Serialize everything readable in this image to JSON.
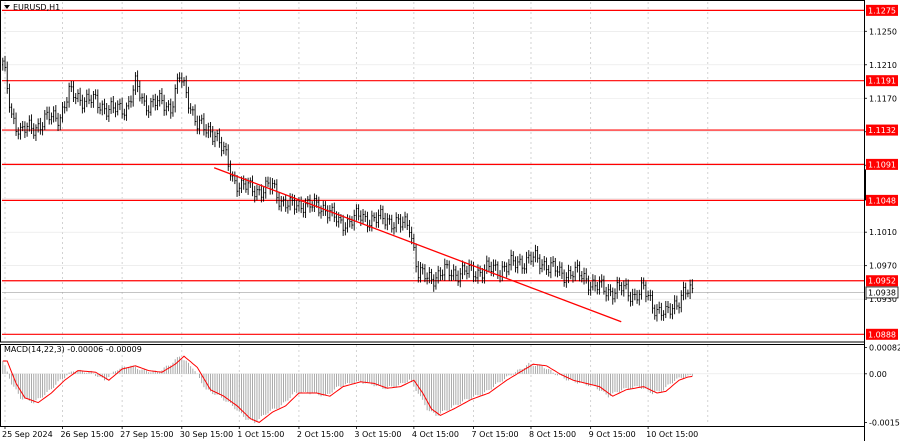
{
  "header": {
    "title": "EURUSD,H1",
    "menu_icon": "triangle-down-icon"
  },
  "colors": {
    "level": "#ff0000",
    "trend": "#ff0000",
    "candle": "#000000",
    "grid": "#c8c8c8",
    "hist": "#a0a0a0",
    "signal": "#ff0000",
    "bid": "#a0a0a0"
  },
  "price_axis": {
    "labels": [
      "1.1250",
      "1.1210",
      "1.1170",
      "1.1130",
      "1.1090",
      "1.1050",
      "1.1010",
      "1.0970",
      "1.0930"
    ]
  },
  "level_labels": [
    "1.1275",
    "1.1191",
    "1.1132",
    "1.1091",
    "1.1048",
    "1.0952",
    "1.0888"
  ],
  "current_price": "1.0938",
  "macd": {
    "title": "MACD(14,22,3) -0.00006 -0.00009",
    "axis_labels": [
      "0.00082",
      "0.00",
      "-0.00152"
    ]
  },
  "time_axis": {
    "labels": [
      "25 Sep 2024",
      "26 Sep 15:00",
      "27 Sep 15:00",
      "30 Sep 15:00",
      "1 Oct 15:00",
      "2 Oct 15:00",
      "3 Oct 15:00",
      "4 Oct 15:00",
      "7 Oct 15:00",
      "8 Oct 15:00",
      "9 Oct 15:00",
      "10 Oct 15:00"
    ]
  },
  "chart_data": {
    "type": "candlestick",
    "symbol": "EURUSD",
    "timeframe": "H1",
    "ylim": [
      1.088,
      1.1285
    ],
    "levels": [
      1.1275,
      1.1191,
      1.1132,
      1.1091,
      1.1048,
      1.0952,
      1.0888
    ],
    "current_price": 1.0938,
    "trendline": {
      "from": {
        "bar": 96,
        "price": 1.1087
      },
      "to": {
        "bar": 244,
        "price": 1.0931
      }
    },
    "price_path": [
      [
        0,
        1.121
      ],
      [
        4,
        1.115
      ],
      [
        8,
        1.113
      ],
      [
        14,
        1.1135
      ],
      [
        20,
        1.1145
      ],
      [
        26,
        1.115
      ],
      [
        30,
        1.1175
      ],
      [
        36,
        1.117
      ],
      [
        42,
        1.1165
      ],
      [
        50,
        1.1155
      ],
      [
        56,
        1.116
      ],
      [
        60,
        1.1185
      ],
      [
        64,
        1.1163
      ],
      [
        70,
        1.1165
      ],
      [
        76,
        1.116
      ],
      [
        80,
        1.1195
      ],
      [
        84,
        1.1168
      ],
      [
        88,
        1.114
      ],
      [
        92,
        1.113
      ],
      [
        96,
        1.113
      ],
      [
        100,
        1.1105
      ],
      [
        104,
        1.1075
      ],
      [
        108,
        1.1065
      ],
      [
        112,
        1.1062
      ],
      [
        118,
        1.106
      ],
      [
        122,
        1.1065
      ],
      [
        126,
        1.1048
      ],
      [
        130,
        1.104
      ],
      [
        136,
        1.1045
      ],
      [
        140,
        1.104
      ],
      [
        146,
        1.104
      ],
      [
        152,
        1.102
      ],
      [
        158,
        1.1025
      ],
      [
        162,
        1.1028
      ],
      [
        168,
        1.1025
      ],
      [
        174,
        1.1026
      ],
      [
        180,
        1.1018
      ],
      [
        184,
        1.102
      ],
      [
        188,
        1.096
      ],
      [
        192,
        1.0955
      ],
      [
        200,
        1.0962
      ],
      [
        210,
        1.0962
      ],
      [
        220,
        1.0965
      ],
      [
        228,
        1.0968
      ],
      [
        234,
        1.0975
      ],
      [
        240,
        1.0978
      ],
      [
        246,
        1.0972
      ],
      [
        252,
        1.096
      ],
      [
        258,
        1.0962
      ],
      [
        264,
        1.0955
      ],
      [
        268,
        1.0945
      ],
      [
        274,
        1.094
      ],
      [
        280,
        1.0942
      ],
      [
        286,
        1.0935
      ],
      [
        290,
        1.094
      ],
      [
        296,
        1.0918
      ],
      [
        300,
        1.091
      ],
      [
        304,
        1.0925
      ],
      [
        308,
        1.0936
      ],
      [
        312,
        1.0938
      ]
    ],
    "macd_path": [
      [
        0,
        0.0004
      ],
      [
        4,
        -0.0003
      ],
      [
        8,
        -0.00075
      ],
      [
        14,
        -0.0009
      ],
      [
        20,
        -0.0006
      ],
      [
        26,
        -0.0002
      ],
      [
        32,
        0.0001
      ],
      [
        40,
        5e-05
      ],
      [
        46,
        -0.0002
      ],
      [
        52,
        0.00015
      ],
      [
        58,
        0.00025
      ],
      [
        64,
        0.0001
      ],
      [
        70,
        5e-05
      ],
      [
        76,
        0.0003
      ],
      [
        80,
        0.00055
      ],
      [
        86,
        0.0002
      ],
      [
        92,
        -0.0005
      ],
      [
        98,
        -0.0007
      ],
      [
        104,
        -0.001
      ],
      [
        110,
        -0.0014
      ],
      [
        114,
        -0.00152
      ],
      [
        120,
        -0.0012
      ],
      [
        126,
        -0.001
      ],
      [
        132,
        -0.0006
      ],
      [
        140,
        -0.0006
      ],
      [
        146,
        -0.0007
      ],
      [
        152,
        -0.0004
      ],
      [
        160,
        -0.00025
      ],
      [
        166,
        -0.0003
      ],
      [
        172,
        -0.00045
      ],
      [
        178,
        -0.0004
      ],
      [
        184,
        -0.0002
      ],
      [
        188,
        -0.0006
      ],
      [
        192,
        -0.0011
      ],
      [
        196,
        -0.0013
      ],
      [
        202,
        -0.0011
      ],
      [
        210,
        -0.0008
      ],
      [
        218,
        -0.0006
      ],
      [
        226,
        -0.0002
      ],
      [
        232,
        5e-05
      ],
      [
        238,
        0.0003
      ],
      [
        244,
        0.00025
      ],
      [
        250,
        0.0
      ],
      [
        256,
        -0.0002
      ],
      [
        262,
        -0.0003
      ],
      [
        268,
        -0.0004
      ],
      [
        274,
        -0.0007
      ],
      [
        280,
        -0.0005
      ],
      [
        288,
        -0.0004
      ],
      [
        294,
        -0.0006
      ],
      [
        298,
        -0.00055
      ],
      [
        304,
        -0.0002
      ],
      [
        308,
        -0.0001
      ],
      [
        312,
        -6e-05
      ]
    ],
    "macd_ylim": [
      -0.0016,
      0.0009
    ]
  }
}
